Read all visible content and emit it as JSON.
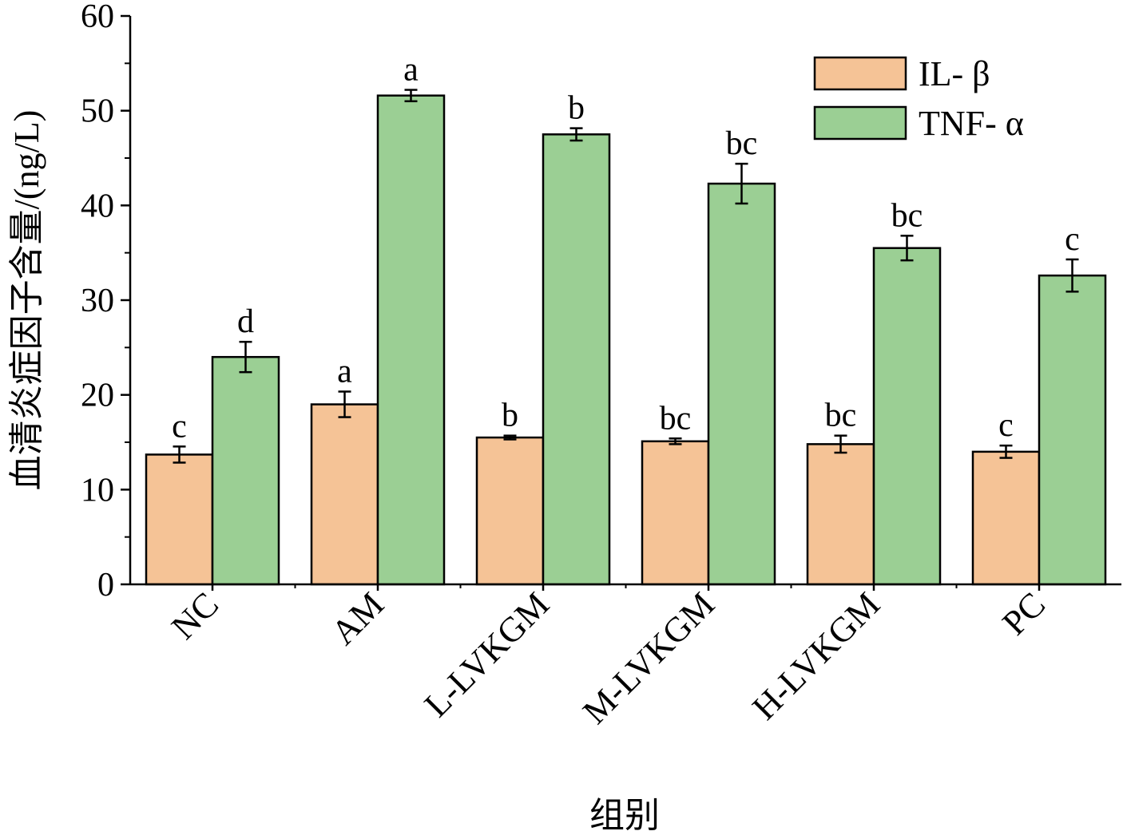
{
  "chart_data": {
    "type": "bar",
    "title": "",
    "xlabel": "组别",
    "ylabel": "血清炎症因子含量/(ng/L)",
    "ylim": [
      0,
      60
    ],
    "yticks": [
      0,
      10,
      20,
      30,
      40,
      50,
      60
    ],
    "categories": [
      "NC",
      "AM",
      "L-LVKGM",
      "M-LVKGM",
      "H-LVKGM",
      "PC"
    ],
    "legend_position": "top-right",
    "series": [
      {
        "name": "IL- β",
        "color": "#F5C396",
        "values": [
          13.7,
          19.0,
          15.5,
          15.1,
          14.8,
          14.0
        ],
        "errors": [
          0.85,
          1.35,
          0.2,
          0.3,
          0.9,
          0.65
        ],
        "labels": [
          "c",
          "a",
          "b",
          "bc",
          "bc",
          "c"
        ]
      },
      {
        "name": "TNF- α",
        "color": "#9BCF94",
        "values": [
          24.0,
          51.6,
          47.5,
          42.3,
          35.5,
          32.6
        ],
        "errors": [
          1.6,
          0.6,
          0.65,
          2.1,
          1.3,
          1.7
        ],
        "labels": [
          "d",
          "a",
          "b",
          "bc",
          "bc",
          "c"
        ]
      }
    ]
  }
}
